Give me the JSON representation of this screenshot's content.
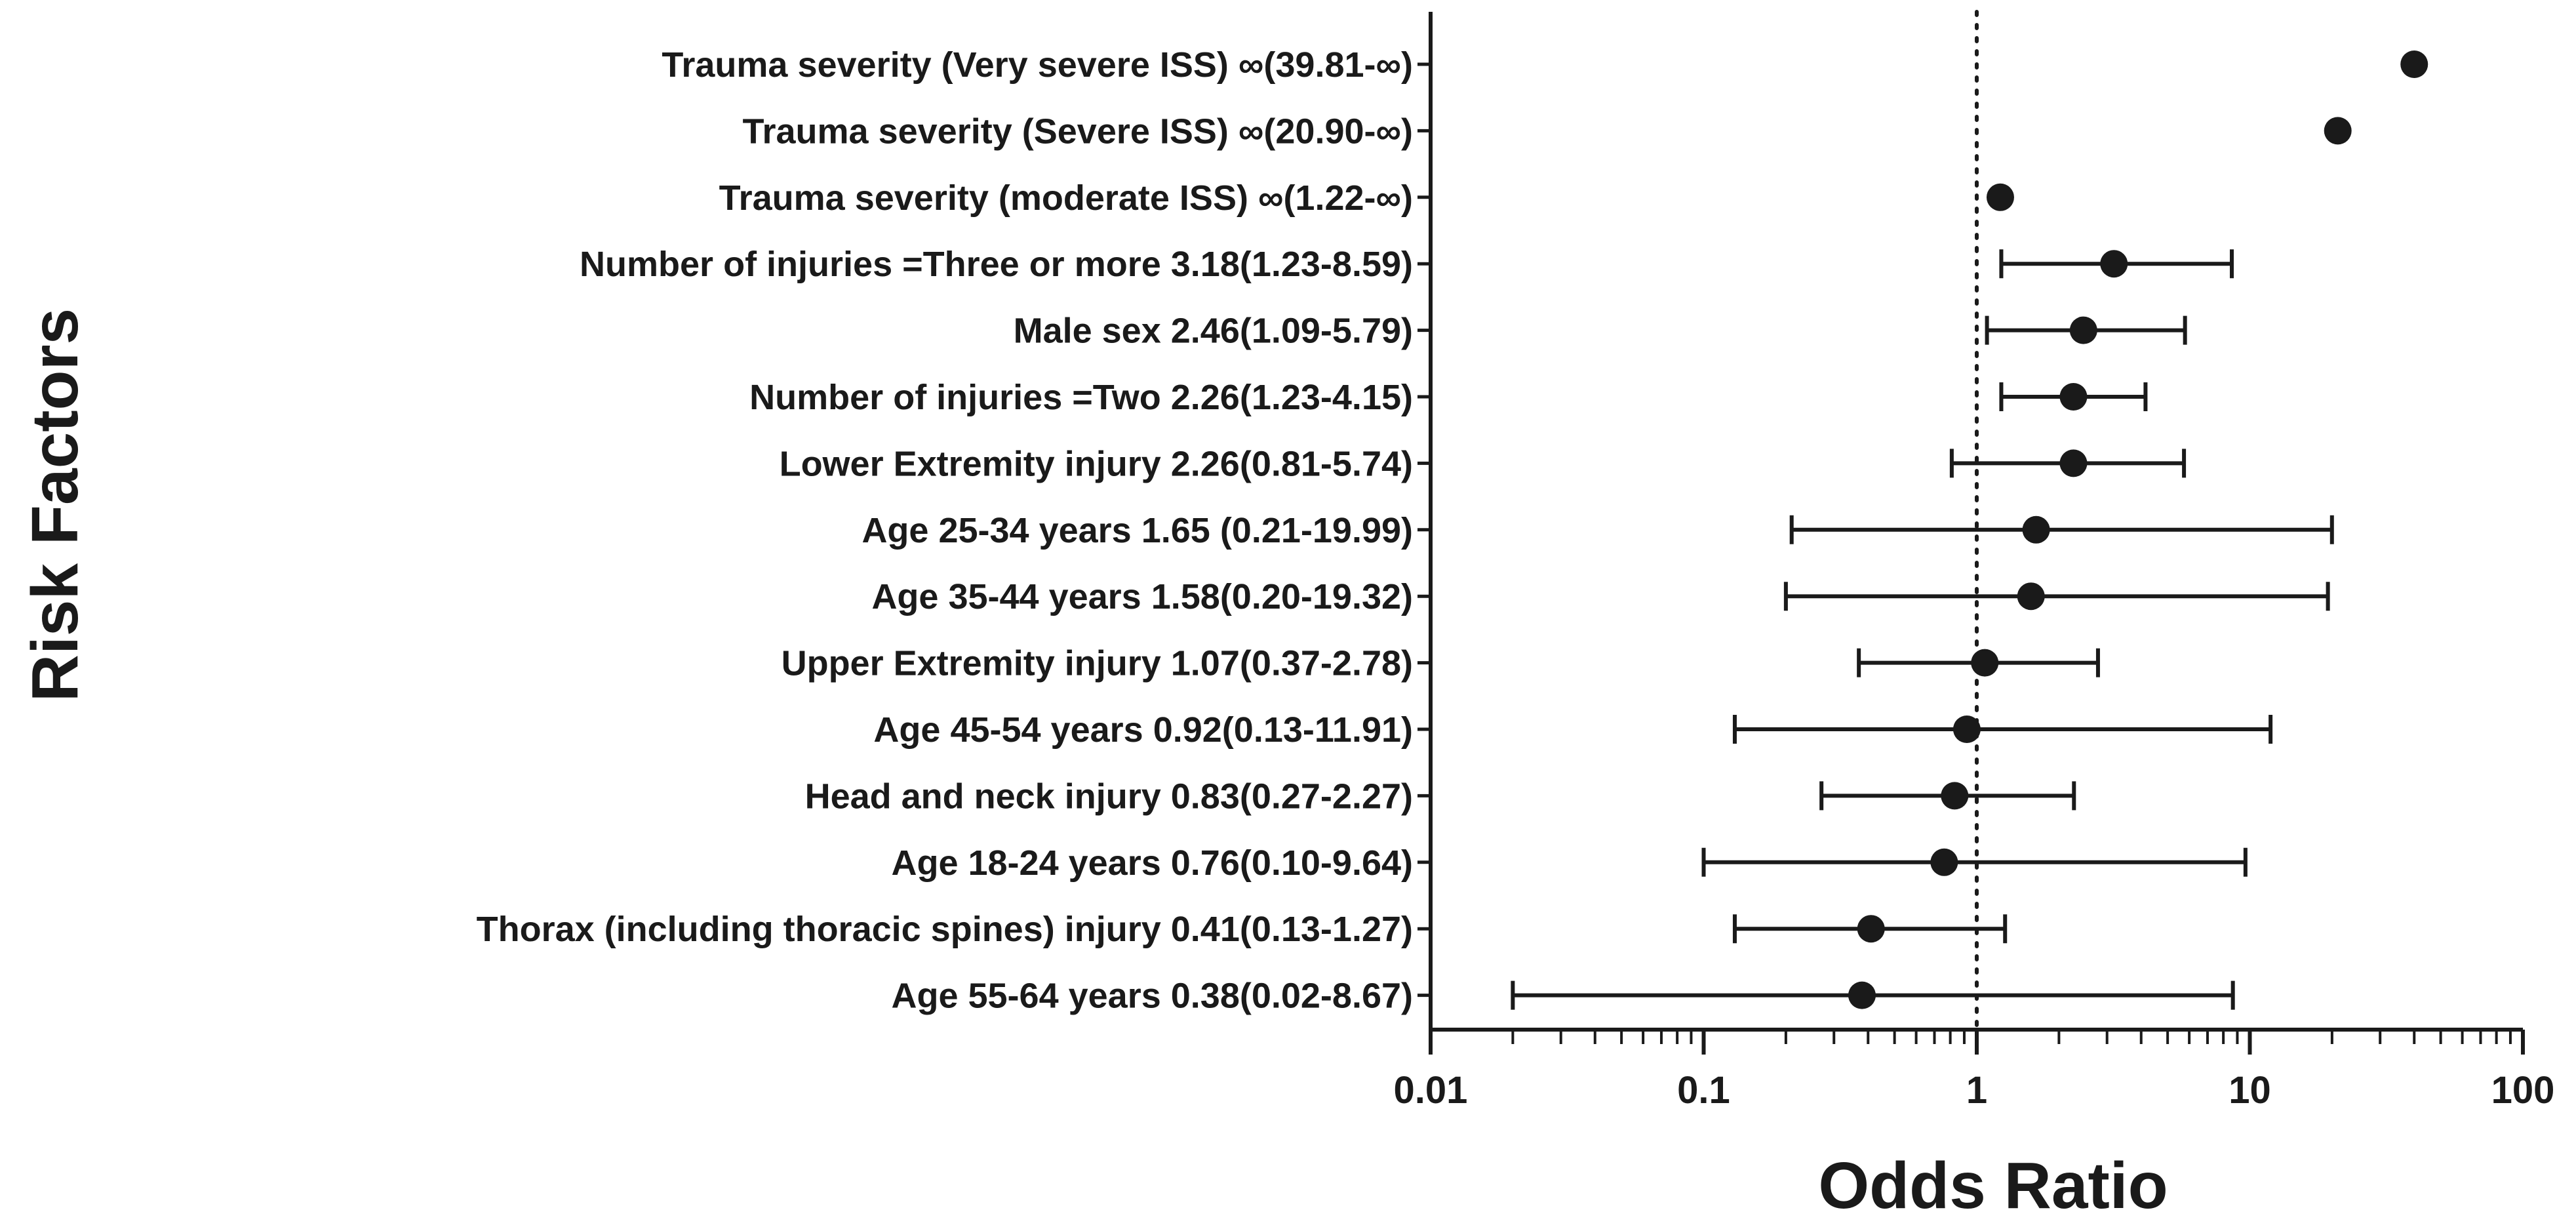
{
  "chart_data": {
    "type": "forest",
    "xlabel": "Odds Ratio",
    "ylabel": "Risk Factors",
    "xscale": "log",
    "xlim": [
      0.01,
      100
    ],
    "x_ticks": [
      0.01,
      0.1,
      1,
      10,
      100
    ],
    "x_tick_labels": [
      "0.01",
      "0.1",
      "1",
      "10",
      "100"
    ],
    "reference_line": 1,
    "reference_line_style": "dotted",
    "rows": [
      {
        "label": "Trauma severity (Very severe ISS) ∞(39.81-∞)",
        "or": 40,
        "lower": null,
        "upper": null
      },
      {
        "label": "Trauma severity (Severe ISS) ∞(20.90-∞)",
        "or": 21,
        "lower": null,
        "upper": null
      },
      {
        "label": "Trauma severity (moderate ISS) ∞(1.22-∞)",
        "or": 1.22,
        "lower": null,
        "upper": null
      },
      {
        "label": "Number of injuries =Three or more 3.18(1.23-8.59)",
        "or": 3.18,
        "lower": 1.23,
        "upper": 8.59
      },
      {
        "label": "Male sex 2.46(1.09-5.79)",
        "or": 2.46,
        "lower": 1.09,
        "upper": 5.79
      },
      {
        "label": "Number of injuries =Two 2.26(1.23-4.15)",
        "or": 2.26,
        "lower": 1.23,
        "upper": 4.15
      },
      {
        "label": "Lower Extremity  injury 2.26(0.81-5.74)",
        "or": 2.26,
        "lower": 0.81,
        "upper": 5.74
      },
      {
        "label": "Age 25-34 years 1.65 (0.21-19.99)",
        "or": 1.65,
        "lower": 0.21,
        "upper": 19.99
      },
      {
        "label": "Age 35-44 years 1.58(0.20-19.32)",
        "or": 1.58,
        "lower": 0.2,
        "upper": 19.32
      },
      {
        "label": "Upper Extremity injury 1.07(0.37-2.78)",
        "or": 1.07,
        "lower": 0.37,
        "upper": 2.78
      },
      {
        "label": "Age 45-54 years 0.92(0.13-11.91)",
        "or": 0.92,
        "lower": 0.13,
        "upper": 11.91
      },
      {
        "label": "Head and neck injury 0.83(0.27-2.27)",
        "or": 0.83,
        "lower": 0.27,
        "upper": 2.27
      },
      {
        "label": "Age 18-24 years 0.76(0.10-9.64)",
        "or": 0.76,
        "lower": 0.1,
        "upper": 9.64
      },
      {
        "label": "Thorax (including thoracic spines)  injury 0.41(0.13-1.27)",
        "or": 0.41,
        "lower": 0.13,
        "upper": 1.27
      },
      {
        "label": "Age 55-64 years 0.38(0.02-8.67)",
        "or": 0.38,
        "lower": 0.02,
        "upper": 8.67
      }
    ]
  },
  "colors": {
    "ink": "#1a1a1a",
    "background": "#ffffff"
  }
}
